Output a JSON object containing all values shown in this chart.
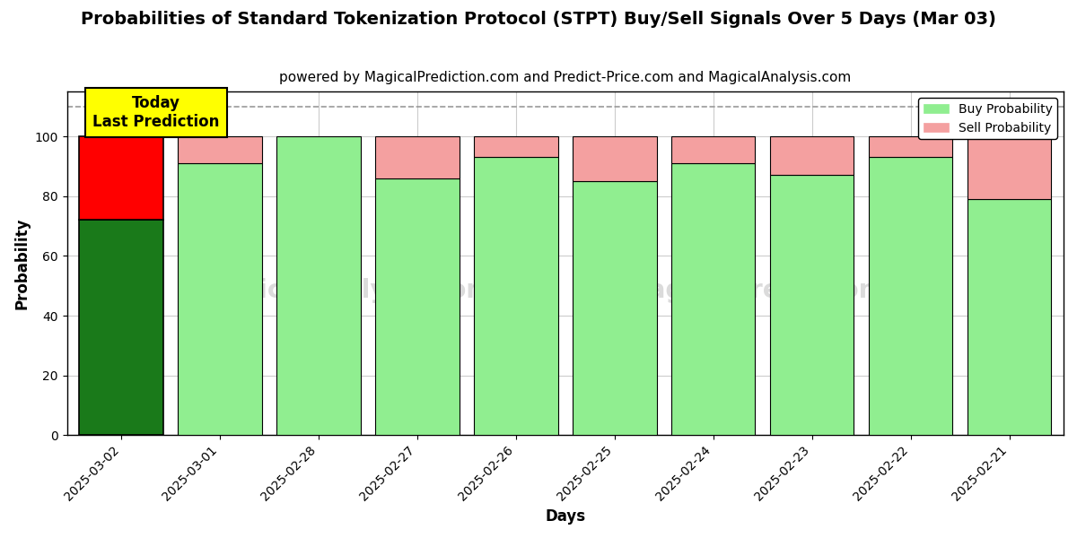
{
  "title": "Probabilities of Standard Tokenization Protocol (STPT) Buy/Sell Signals Over 5 Days (Mar 03)",
  "subtitle": "powered by MagicalPrediction.com and Predict-Price.com and MagicalAnalysis.com",
  "xlabel": "Days",
  "ylabel": "Probability",
  "dates": [
    "2025-03-02",
    "2025-03-01",
    "2025-02-28",
    "2025-02-27",
    "2025-02-26",
    "2025-02-25",
    "2025-02-24",
    "2025-02-23",
    "2025-02-22",
    "2025-02-21"
  ],
  "buy_values": [
    72,
    91,
    100,
    86,
    93,
    85,
    91,
    87,
    93,
    79
  ],
  "sell_values": [
    28,
    9,
    0,
    14,
    7,
    15,
    9,
    13,
    7,
    21
  ],
  "today_index": 0,
  "buy_color_today": "#1a7a1a",
  "sell_color_today": "#ff0000",
  "buy_color_future": "#90ee90",
  "sell_color_future": "#f4a0a0",
  "today_label_bg": "#ffff00",
  "today_label_text": "Today\nLast Prediction",
  "dashed_line_y": 110,
  "ylim": [
    0,
    115
  ],
  "yticks": [
    0,
    20,
    40,
    60,
    80,
    100
  ],
  "legend_buy": "Buy Probability",
  "legend_sell": "Sell Probability",
  "bar_width": 0.85,
  "title_fontsize": 14,
  "subtitle_fontsize": 11,
  "axis_label_fontsize": 12,
  "tick_fontsize": 10,
  "background_color": "#ffffff",
  "grid_color": "#cccccc"
}
